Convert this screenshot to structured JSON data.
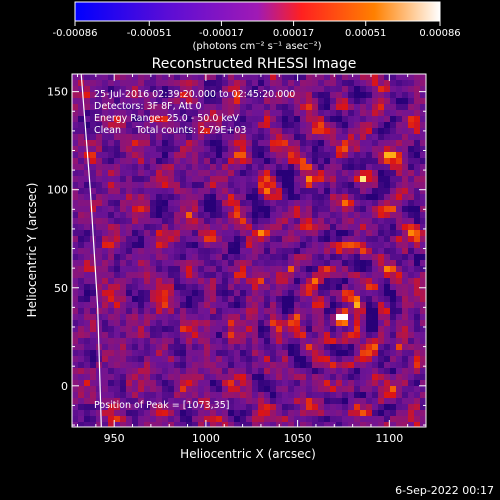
{
  "chart_data": {
    "type": "heatmap",
    "title": "Reconstructed RHESSI Image",
    "xlabel": "Heliocentric X (arcsec)",
    "ylabel": "Heliocentric Y (arcsec)",
    "xlim": [
      927,
      1120
    ],
    "ylim": [
      -21,
      159
    ],
    "xticks": [
      950,
      1000,
      1050,
      1100
    ],
    "xtick_labels": [
      "950",
      "1000",
      "1050",
      "1100"
    ],
    "yticks": [
      0,
      50,
      100,
      150
    ],
    "ytick_labels": [
      "0",
      "50",
      "100",
      "150"
    ],
    "colorbar": {
      "range": [
        -0.00086,
        0.00086
      ],
      "ticks": [
        -0.00086,
        -0.00051,
        -0.00017,
        0.00017,
        0.00051,
        0.00086
      ],
      "tick_labels": [
        "-0.00086",
        "-0.00051",
        "-0.00017",
        "0.00017",
        "0.00051",
        "0.00086"
      ],
      "unit_label": "(photons cm⁻² s⁻¹ asec⁻²)",
      "colors": [
        "#0000ff",
        "#5a0dd6",
        "#a01ab5",
        "#ff2020",
        "#ff8000",
        "#ffffff"
      ]
    },
    "annotations": [
      "25-Jul-2016 02:39:20.000 to 02:45:20.000",
      "Detectors: 3F 8F, Att 0",
      "Energy Range: 25.0 - 50.0 keV",
      "Clean     Total counts: 2.79E+03",
      "Position of Peak = [1073,35]"
    ],
    "peak": {
      "x": 1073,
      "y": 35
    },
    "limb_curve_x": [
      932,
      937,
      941,
      943
    ],
    "limb_curve_y": [
      159,
      100,
      40,
      -21
    ]
  },
  "footer": {
    "date": "6-Sep-2022 00:17"
  }
}
